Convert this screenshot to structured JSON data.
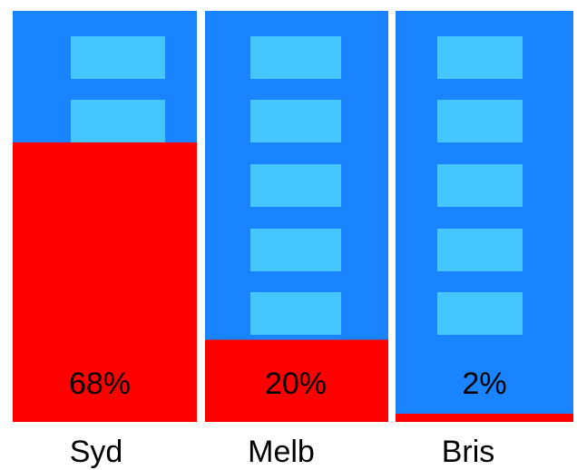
{
  "chart_data": {
    "type": "bar",
    "categories": [
      "Syd",
      "Melb",
      "Bris"
    ],
    "values": [
      68,
      20,
      2
    ],
    "value_labels": [
      "68%",
      "20%",
      "2%"
    ],
    "unit": "%",
    "ylim": [
      0,
      100
    ],
    "title": "",
    "xlabel": "",
    "ylabel": "",
    "grid": false,
    "legend": "none"
  },
  "colors": {
    "column_background": "#1a84ff",
    "fill": "#ff0000",
    "window": "#45c6ff"
  }
}
